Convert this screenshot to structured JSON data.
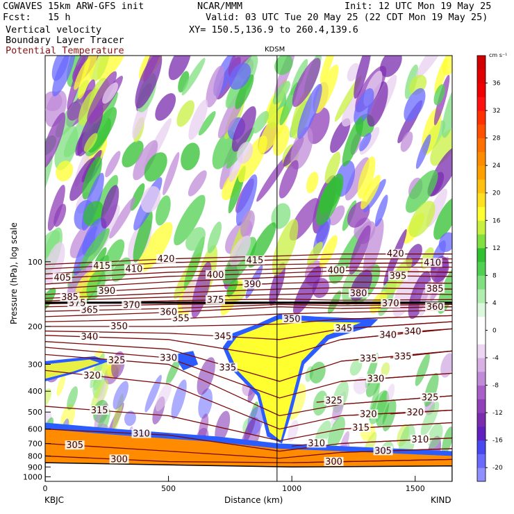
{
  "header": {
    "left_line1": "CGWAVES 15km ARW-GFS init",
    "left_line2": "Fcst:   15 h",
    "left_line3": "Vertical velocity",
    "left_line4": "Boundary Layer Tracer",
    "left_line5": "Potential Temperature",
    "center_line1": "NCAR/MMM",
    "right_line1": "Init: 12 UTC Mon 19 May 25",
    "right_line2": "Valid: 03 UTC Tue 20 May 25 (22 CDT Mon 19 May 25)",
    "right_line3": "XY= 150.5,136.9 to 260.4,139.6"
  },
  "colors": {
    "theta_contour": "#7a0a0a",
    "tracer_blue": "#2a5cff",
    "tracer_orange": "#ff8c00",
    "tracer_yellow": "#ffff30",
    "ground": "#ffffff"
  },
  "chart_data": {
    "type": "heatmap",
    "title": "",
    "station_marker": "KDSM",
    "station_marker_x_km": 940,
    "xlabel": "Distance (km)",
    "ylabel": "Pressure (hPa), log scale",
    "xlim": [
      0,
      1650
    ],
    "x_ticks": [
      "0",
      "500",
      "1000",
      "1500"
    ],
    "x_tick_values": [
      0,
      500,
      1000,
      1500
    ],
    "endpoint_left": "KBJC",
    "endpoint_right": "KIND",
    "y_scale": "log",
    "ylim_hPa": [
      1050,
      11
    ],
    "y_ticks": [
      "100",
      "200",
      "300",
      "400",
      "500",
      "600",
      "700",
      "800",
      "900",
      "1000"
    ],
    "y_tick_values": [
      100,
      200,
      300,
      400,
      500,
      600,
      700,
      800,
      900,
      1000
    ],
    "tropopause_hPa": 155,
    "colorbar": {
      "unit_label": "cm s⁻¹",
      "tick_labels": [
        "36",
        "32",
        "28",
        "24",
        "20",
        "16",
        "12",
        "8",
        "4",
        "0",
        "-4",
        "-8",
        "-12",
        "-16",
        "-20"
      ],
      "levels": [
        -22,
        -20,
        -18,
        -16,
        -14,
        -12,
        -10,
        -8,
        -6,
        -4,
        -2,
        0,
        2,
        4,
        6,
        8,
        10,
        12,
        14,
        16,
        18,
        20,
        22,
        24,
        26,
        28,
        30,
        32,
        34,
        36,
        38,
        40
      ],
      "colors": [
        "#8f8fff",
        "#6a6aff",
        "#4848f0",
        "#6020c0",
        "#7a2cae",
        "#9040b8",
        "#a860c8",
        "#c08cd8",
        "#d8b0e4",
        "#ecd6f2",
        "#ffffff",
        "#ffffff",
        "#dcf8dc",
        "#b0eeb0",
        "#80e080",
        "#50d050",
        "#30c030",
        "#80e040",
        "#c8f040",
        "#ffff30",
        "#ffe020",
        "#ffc010",
        "#ffa000",
        "#ff8c00",
        "#ff7000",
        "#ff5000",
        "#ff3000",
        "#ff1010",
        "#f00000",
        "#e00000",
        "#d00000"
      ]
    },
    "theta_contours": [
      {
        "label": "300",
        "hPa_at_x": [
          [
            0,
            800
          ],
          [
            500,
            850
          ],
          [
            1000,
            860
          ],
          [
            1650,
            830
          ]
        ],
        "label_x_km": 300
      },
      {
        "label": "300",
        "hPa_at_x": [
          [
            1000,
            860
          ],
          [
            1650,
            830
          ]
        ],
        "label_x_km": 1170
      },
      {
        "label": "305",
        "hPa_at_x": [
          [
            0,
            700
          ],
          [
            500,
            760
          ],
          [
            950,
            820
          ],
          [
            1200,
            770
          ],
          [
            1650,
            740
          ]
        ],
        "label_x_km": 120
      },
      {
        "label": "305",
        "hPa_at_x": [
          [
            1200,
            770
          ],
          [
            1650,
            740
          ]
        ],
        "label_x_km": 1370
      },
      {
        "label": "310",
        "hPa_at_x": [
          [
            0,
            600
          ],
          [
            500,
            640
          ],
          [
            950,
            760
          ],
          [
            1200,
            700
          ],
          [
            1650,
            660
          ]
        ],
        "label_x_km": 390
      },
      {
        "label": "310",
        "hPa_at_x": [
          [
            1200,
            700
          ],
          [
            1650,
            660
          ]
        ],
        "label_x_km": 1520
      },
      {
        "label": "310",
        "hPa_at_x": [
          [
            1000,
            720
          ],
          [
            1100,
            700
          ]
        ],
        "label_x_km": 1100
      },
      {
        "label": "315",
        "hPa_at_x": [
          [
            0,
            470
          ],
          [
            500,
            520
          ],
          [
            950,
            680
          ],
          [
            1200,
            600
          ],
          [
            1650,
            560
          ]
        ],
        "label_x_km": 220
      },
      {
        "label": "315",
        "hPa_at_x": [
          [
            1200,
            600
          ],
          [
            1650,
            560
          ]
        ],
        "label_x_km": 1280
      },
      {
        "label": "320",
        "hPa_at_x": [
          [
            0,
            320
          ],
          [
            500,
            370
          ],
          [
            950,
            600
          ],
          [
            1200,
            520
          ],
          [
            1650,
            490
          ]
        ],
        "label_x_km": 190
      },
      {
        "label": "320",
        "hPa_at_x": [
          [
            1200,
            520
          ],
          [
            1650,
            490
          ]
        ],
        "label_x_km": 1310
      },
      {
        "label": "320",
        "hPa_at_x": [
          [
            1400,
            510
          ],
          [
            1650,
            490
          ]
        ],
        "label_x_km": 1500
      },
      {
        "label": "325",
        "hPa_at_x": [
          [
            0,
            270
          ],
          [
            500,
            300
          ],
          [
            950,
            520
          ],
          [
            1200,
            460
          ],
          [
            1650,
            420
          ]
        ],
        "label_x_km": 290
      },
      {
        "label": "325",
        "hPa_at_x": [
          [
            1200,
            460
          ],
          [
            1650,
            420
          ]
        ],
        "label_x_km": 1560
      },
      {
        "label": "325",
        "hPa_at_x": [
          [
            1100,
            450
          ],
          [
            1200,
            440
          ]
        ],
        "label_x_km": 1170
      },
      {
        "label": "330",
        "hPa_at_x": [
          [
            0,
            250
          ],
          [
            500,
            280
          ],
          [
            950,
            430
          ],
          [
            1200,
            360
          ],
          [
            1650,
            330
          ]
        ],
        "label_x_km": 500
      },
      {
        "label": "330",
        "hPa_at_x": [
          [
            1200,
            360
          ],
          [
            1650,
            330
          ]
        ],
        "label_x_km": 1340
      },
      {
        "label": "335",
        "hPa_at_x": [
          [
            0,
            235
          ],
          [
            500,
            255
          ],
          [
            950,
            360
          ],
          [
            1200,
            290
          ],
          [
            1650,
            260
          ]
        ],
        "label_x_km": 740
      },
      {
        "label": "335",
        "hPa_at_x": [
          [
            1200,
            290
          ],
          [
            1650,
            260
          ]
        ],
        "label_x_km": 1310
      },
      {
        "label": "335",
        "hPa_at_x": [
          [
            1400,
            280
          ],
          [
            1650,
            260
          ]
        ],
        "label_x_km": 1450
      },
      {
        "label": "340",
        "hPa_at_x": [
          [
            0,
            220
          ],
          [
            500,
            230
          ],
          [
            950,
            280
          ],
          [
            1200,
            230
          ],
          [
            1650,
            205
          ]
        ],
        "label_x_km": 180
      },
      {
        "label": "340",
        "hPa_at_x": [
          [
            1200,
            230
          ],
          [
            1650,
            205
          ]
        ],
        "label_x_km": 1390
      },
      {
        "label": "340",
        "hPa_at_x": [
          [
            1400,
            215
          ],
          [
            1650,
            205
          ]
        ],
        "label_x_km": 1490
      },
      {
        "label": "345",
        "hPa_at_x": [
          [
            0,
            210
          ],
          [
            500,
            215
          ],
          [
            950,
            230
          ],
          [
            1200,
            205
          ],
          [
            1650,
            190
          ]
        ],
        "label_x_km": 720
      },
      {
        "label": "345",
        "hPa_at_x": [
          [
            1200,
            205
          ],
          [
            1650,
            190
          ]
        ],
        "label_x_km": 1210
      },
      {
        "label": "350",
        "hPa_at_x": [
          [
            0,
            200
          ],
          [
            500,
            200
          ],
          [
            950,
            195
          ],
          [
            1200,
            185
          ],
          [
            1650,
            178
          ]
        ],
        "label_x_km": 300
      },
      {
        "label": "350",
        "hPa_at_x": [
          [
            1200,
            185
          ],
          [
            1650,
            178
          ]
        ],
        "label_x_km": 1000
      },
      {
        "label": "355",
        "hPa_at_x": [
          [
            0,
            190
          ],
          [
            500,
            185
          ],
          [
            950,
            175
          ],
          [
            1200,
            172
          ],
          [
            1650,
            168
          ]
        ],
        "label_x_km": 550
      },
      {
        "label": "360",
        "hPa_at_x": [
          [
            0,
            180
          ],
          [
            500,
            172
          ],
          [
            950,
            162
          ],
          [
            1200,
            165
          ],
          [
            1650,
            162
          ]
        ],
        "label_x_km": 500
      },
      {
        "label": "360",
        "hPa_at_x": [
          [
            1200,
            165
          ],
          [
            1650,
            162
          ]
        ],
        "label_x_km": 1580
      },
      {
        "label": "365",
        "hPa_at_x": [
          [
            0,
            170
          ],
          [
            500,
            165
          ],
          [
            950,
            158
          ],
          [
            1200,
            160
          ],
          [
            1650,
            158
          ]
        ],
        "label_x_km": 180
      },
      {
        "label": "370",
        "hPa_at_x": [
          [
            0,
            162
          ],
          [
            500,
            158
          ],
          [
            950,
            156
          ],
          [
            1200,
            157
          ],
          [
            1650,
            156
          ]
        ],
        "label_x_km": 350
      },
      {
        "label": "370",
        "hPa_at_x": [
          [
            1200,
            157
          ],
          [
            1650,
            156
          ]
        ],
        "label_x_km": 1400
      },
      {
        "label": "375",
        "hPa_at_x": [
          [
            0,
            157
          ],
          [
            500,
            152
          ],
          [
            950,
            149
          ],
          [
            1200,
            151
          ],
          [
            1650,
            150
          ]
        ],
        "label_x_km": 130
      },
      {
        "label": "375",
        "hPa_at_x": [
          [
            500,
            152
          ],
          [
            950,
            149
          ]
        ],
        "label_x_km": 690
      },
      {
        "label": "380",
        "hPa_at_x": [
          [
            0,
            152
          ],
          [
            500,
            146
          ],
          [
            950,
            142
          ],
          [
            1200,
            140
          ],
          [
            1650,
            142
          ]
        ],
        "label_x_km": 1270
      },
      {
        "label": "385",
        "hPa_at_x": [
          [
            0,
            148
          ],
          [
            500,
            140
          ],
          [
            950,
            134
          ],
          [
            1200,
            132
          ],
          [
            1650,
            134
          ]
        ],
        "label_x_km": 100
      },
      {
        "label": "385",
        "hPa_at_x": [
          [
            1200,
            132
          ],
          [
            1650,
            134
          ]
        ],
        "label_x_km": 1580
      },
      {
        "label": "390",
        "hPa_at_x": [
          [
            0,
            142
          ],
          [
            500,
            132
          ],
          [
            950,
            126
          ],
          [
            1200,
            124
          ],
          [
            1650,
            126
          ]
        ],
        "label_x_km": 250
      },
      {
        "label": "390",
        "hPa_at_x": [
          [
            500,
            132
          ],
          [
            950,
            126
          ]
        ],
        "label_x_km": 840
      },
      {
        "label": "395",
        "hPa_at_x": [
          [
            0,
            134
          ],
          [
            500,
            124
          ],
          [
            950,
            118
          ],
          [
            1200,
            116
          ],
          [
            1650,
            117
          ]
        ],
        "label_x_km": 1430
      },
      {
        "label": "400",
        "hPa_at_x": [
          [
            0,
            127
          ],
          [
            500,
            117
          ],
          [
            950,
            113
          ],
          [
            1200,
            110
          ],
          [
            1650,
            112
          ]
        ],
        "label_x_km": 690
      },
      {
        "label": "400",
        "hPa_at_x": [
          [
            1200,
            110
          ],
          [
            1650,
            112
          ]
        ],
        "label_x_km": 1180
      },
      {
        "label": "405",
        "hPa_at_x": [
          [
            0,
            120
          ],
          [
            500,
            112
          ],
          [
            950,
            108
          ],
          [
            1200,
            106
          ],
          [
            1650,
            106
          ]
        ],
        "label_x_km": 70
      },
      {
        "label": "410",
        "hPa_at_x": [
          [
            0,
            114
          ],
          [
            500,
            106
          ],
          [
            950,
            103
          ],
          [
            1200,
            102
          ],
          [
            1650,
            101
          ]
        ],
        "label_x_km": 360
      },
      {
        "label": "410",
        "hPa_at_x": [
          [
            1200,
            102
          ],
          [
            1650,
            101
          ]
        ],
        "label_x_km": 1570
      },
      {
        "label": "415",
        "hPa_at_x": [
          [
            0,
            108
          ],
          [
            500,
            101
          ],
          [
            950,
            98
          ],
          [
            1200,
            97
          ],
          [
            1650,
            97
          ]
        ],
        "label_x_km": 230
      },
      {
        "label": "415",
        "hPa_at_x": [
          [
            500,
            101
          ],
          [
            950,
            98
          ]
        ],
        "label_x_km": 850
      },
      {
        "label": "420",
        "hPa_at_x": [
          [
            0,
            103
          ],
          [
            500,
            97
          ],
          [
            950,
            94
          ],
          [
            1200,
            92
          ],
          [
            1650,
            92
          ]
        ],
        "label_x_km": 490
      },
      {
        "label": "420",
        "hPa_at_x": [
          [
            1200,
            92
          ],
          [
            1650,
            92
          ]
        ],
        "label_x_km": 1420
      }
    ]
  }
}
